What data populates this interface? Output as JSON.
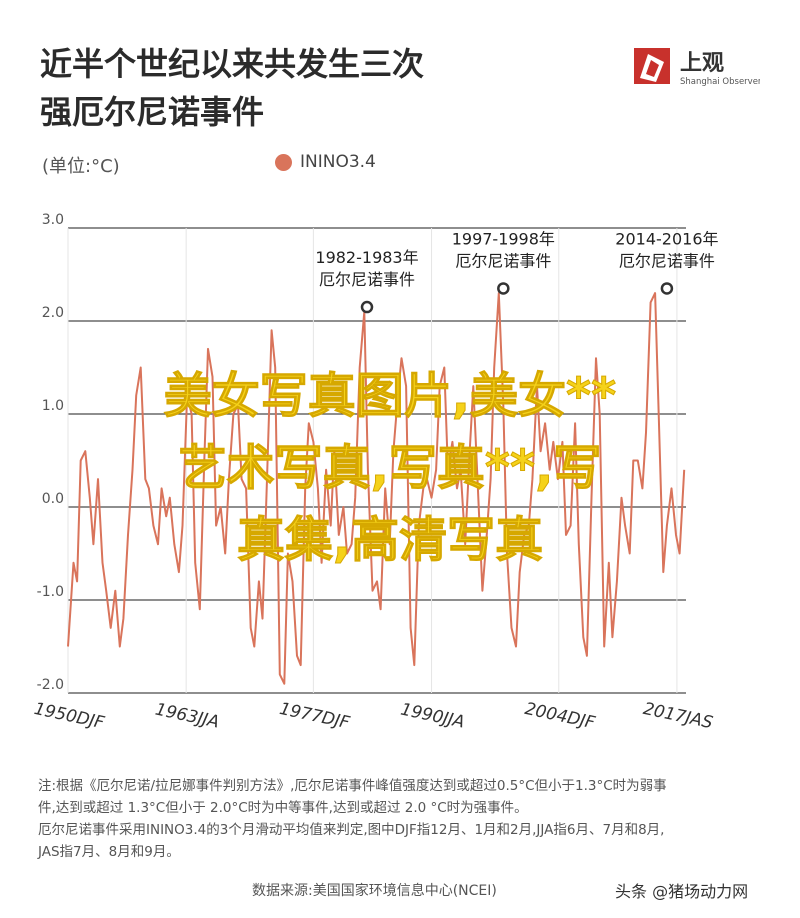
{
  "title": {
    "line1": "近半个世纪以来共发生三次",
    "line2": "强厄尔尼诺事件"
  },
  "logo": {
    "name": "上观",
    "sub": "Shanghai Observer"
  },
  "unit_label": "(单位:°C)",
  "legend_label": "ININO3.4",
  "colors": {
    "series": "#d9745b",
    "grid": "#4a4a4a",
    "overlay": "#f5d21a"
  },
  "chart_data": {
    "type": "line",
    "xlabel": "",
    "ylabel": "",
    "ylim": [
      -2.0,
      3.0
    ],
    "yticks": [
      3.0,
      2.0,
      1.0,
      0.0,
      -1.0,
      -2.0
    ],
    "ytick_labels": [
      "3.0",
      "2.0",
      "1.0",
      "0.0",
      "-1.0",
      "-2.0"
    ],
    "xlim": [
      1950,
      2018
    ],
    "xticks": [
      1950,
      1963,
      1977,
      1990,
      2004,
      2017
    ],
    "xtick_labels": [
      "1950DJF",
      "1963JJA",
      "1977DJF",
      "1990JJA",
      "2004DJF",
      "2017JAS"
    ],
    "grid": true,
    "legend": "top",
    "series": [
      {
        "name": "ININO3.4",
        "x": [
          1950.0,
          1950.6,
          1951.0,
          1951.4,
          1951.9,
          1952.4,
          1952.8,
          1953.3,
          1953.8,
          1954.2,
          1954.7,
          1955.2,
          1955.7,
          1956.1,
          1956.6,
          1957.1,
          1957.5,
          1958.0,
          1958.5,
          1958.9,
          1959.4,
          1959.9,
          1960.3,
          1960.8,
          1961.2,
          1961.7,
          1962.2,
          1962.6,
          1963.1,
          1963.6,
          1964.0,
          1964.5,
          1965.0,
          1965.4,
          1965.9,
          1966.3,
          1966.8,
          1967.3,
          1967.7,
          1968.2,
          1968.7,
          1969.1,
          1969.6,
          1970.1,
          1970.5,
          1971.0,
          1971.4,
          1971.9,
          1972.4,
          1972.8,
          1973.3,
          1973.8,
          1974.2,
          1974.7,
          1975.2,
          1975.6,
          1976.1,
          1976.5,
          1977.0,
          1977.5,
          1977.9,
          1978.4,
          1978.9,
          1979.3,
          1979.8,
          1980.3,
          1980.7,
          1981.2,
          1981.6,
          1982.1,
          1982.6,
          1983.0,
          1983.5,
          1984.0,
          1984.4,
          1984.9,
          1985.4,
          1985.8,
          1986.3,
          1986.7,
          1987.2,
          1987.7,
          1988.1,
          1988.6,
          1989.1,
          1989.5,
          1990.0,
          1990.5,
          1990.9,
          1991.4,
          1991.8,
          1992.3,
          1992.8,
          1993.2,
          1993.7,
          1994.2,
          1994.6,
          1995.1,
          1995.6,
          1996.0,
          1996.5,
          1996.9,
          1997.4,
          1997.9,
          1998.3,
          1998.8,
          1999.3,
          1999.7,
          2000.2,
          2000.7,
          2001.1,
          2001.6,
          2002.0,
          2002.5,
          2003.0,
          2003.4,
          2003.9,
          2004.4,
          2004.8,
          2005.3,
          2005.8,
          2006.2,
          2006.7,
          2007.1,
          2007.6,
          2008.1,
          2008.5,
          2009.0,
          2009.5,
          2009.9,
          2010.4,
          2010.9,
          2011.3,
          2011.8,
          2012.2,
          2012.7,
          2013.2,
          2013.6,
          2014.1,
          2014.6,
          2015.0,
          2015.5,
          2015.9,
          2016.4,
          2016.9,
          2017.3,
          2017.8
        ],
        "values": [
          -1.5,
          -0.6,
          -0.8,
          0.5,
          0.6,
          0.1,
          -0.4,
          0.3,
          -0.6,
          -0.9,
          -1.3,
          -0.9,
          -1.5,
          -1.2,
          -0.3,
          0.4,
          1.2,
          1.5,
          0.3,
          0.2,
          -0.2,
          -0.4,
          0.2,
          -0.1,
          0.1,
          -0.4,
          -0.7,
          -0.2,
          1.2,
          1.0,
          -0.6,
          -1.1,
          0.5,
          1.7,
          1.4,
          -0.2,
          0.0,
          -0.5,
          0.3,
          1.0,
          1.1,
          0.3,
          0.2,
          -1.3,
          -1.5,
          -0.8,
          -1.2,
          0.3,
          1.9,
          1.5,
          -1.8,
          -1.9,
          -0.5,
          -0.8,
          -1.6,
          -1.7,
          0.2,
          0.9,
          0.7,
          0.2,
          -0.6,
          0.4,
          -0.2,
          0.6,
          -0.3,
          0.0,
          -0.5,
          -0.4,
          0.1,
          1.5,
          2.1,
          0.4,
          -0.9,
          -0.8,
          -1.1,
          0.2,
          -0.4,
          0.6,
          1.2,
          1.6,
          1.3,
          -1.3,
          -1.7,
          -0.2,
          0.2,
          0.3,
          0.1,
          0.4,
          1.3,
          1.5,
          0.4,
          0.7,
          0.2,
          0.4,
          -0.4,
          0.6,
          1.3,
          0.2,
          -0.9,
          -0.4,
          0.3,
          1.5,
          2.3,
          1.1,
          -0.5,
          -1.3,
          -1.5,
          -0.7,
          -0.3,
          -0.2,
          0.3,
          1.3,
          0.6,
          0.9,
          0.4,
          0.7,
          0.3,
          0.7,
          -0.3,
          -0.2,
          0.9,
          -0.4,
          -1.4,
          -1.6,
          0.1,
          1.6,
          1.0,
          -1.5,
          -0.6,
          -1.4,
          -0.8,
          0.1,
          -0.2,
          -0.5,
          0.5,
          0.5,
          0.2,
          0.8,
          2.2,
          2.3,
          1.0,
          -0.7,
          -0.2,
          0.2,
          -0.3,
          -0.5,
          0.4
        ]
      }
    ],
    "annotations": [
      {
        "x": 1982.9,
        "y": 2.15,
        "line1": "1982-1983年",
        "line2": "厄尔尼诺事件"
      },
      {
        "x": 1997.9,
        "y": 2.35,
        "line1": "1997-1998年",
        "line2": "厄尔尼诺事件"
      },
      {
        "x": 2015.9,
        "y": 2.35,
        "line1": "2014-2016年",
        "line2": "厄尔尼诺事件"
      }
    ]
  },
  "note": {
    "line1": "注:根据《厄尔尼诺/拉尼娜事件判别方法》,厄尔尼诺事件峰值强度达到或超过0.5°C但小于1.3°C时为弱事",
    "line2": "件,达到或超过 1.3°C但小于 2.0°C时为中等事件,达到或超过 2.0 °C时为强事件。",
    "line3": "厄尔尼诺事件采用ININO3.4的3个月滑动平均值来判定,图中DJF指12月、1月和2月,JJA指6月、7月和8月,",
    "line4": "JAS指7月、8月和9月。"
  },
  "source": "数据来源:美国国家环境信息中心(NCEI)",
  "credit": "头条 @猪场动力网",
  "overlay": {
    "line1": "美女写真图片,美女**",
    "line2": "艺术写真,写真**,写",
    "line3": "真集,高清写真"
  }
}
